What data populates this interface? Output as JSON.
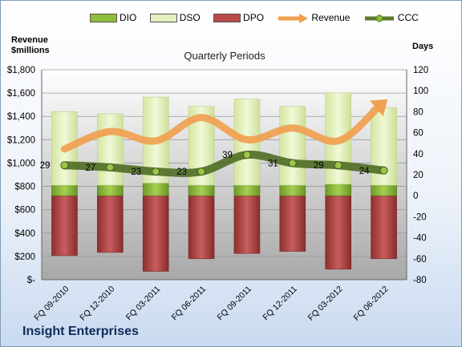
{
  "company": "Insight Enterprises",
  "left_axis_title": "Revenue\n$millions",
  "right_axis_title": "Days",
  "chart_data": {
    "type": "bar",
    "title": "Quarterly Periods",
    "categories": [
      "FQ 09-2010",
      "FQ 12-2010",
      "FQ 03-2011",
      "FQ 06-2011",
      "FQ 09-2011",
      "FQ 12-2011",
      "FQ 03-2012",
      "FQ 06-2012"
    ],
    "left_axis": {
      "title": "Revenue $millions",
      "min": 0,
      "max": 1800,
      "step": 200,
      "tick_labels": [
        "$-",
        "$200",
        "$400",
        "$600",
        "$800",
        "$1,000",
        "$1,200",
        "$1,400",
        "$1,600",
        "$1,800"
      ]
    },
    "right_axis": {
      "title": "Days",
      "min": -80,
      "max": 120,
      "step": 20
    },
    "series": [
      {
        "name": "DIO",
        "kind": "stacked_bar_positive",
        "color": "#8fbc3a",
        "values": [
          10,
          10,
          12,
          10,
          10,
          10,
          11,
          10
        ]
      },
      {
        "name": "DSO",
        "kind": "stacked_bar_positive",
        "color": "#e3efbf",
        "values": [
          70,
          68,
          82,
          75,
          82,
          75,
          87,
          74
        ]
      },
      {
        "name": "DPO",
        "kind": "bar_negative",
        "color": "#b84a4a",
        "values": [
          -57,
          -54,
          -72,
          -60,
          -55,
          -53,
          -70,
          -60
        ]
      },
      {
        "name": "Revenue",
        "kind": "line_left_axis",
        "color": "#f0a050",
        "values": [
          1120,
          1270,
          1190,
          1390,
          1200,
          1300,
          1190,
          1520
        ]
      },
      {
        "name": "CCC",
        "kind": "line_right_axis",
        "color": "#5f7a2e",
        "values": [
          29,
          27,
          23,
          23,
          39,
          31,
          29,
          24
        ]
      }
    ],
    "ccc_labels": [
      "29",
      "27",
      "23",
      "23",
      "39",
      "31",
      "29",
      "24"
    ],
    "legend_position": "top",
    "grid": true
  },
  "colors": {
    "plot_bg_top": "#ffffff",
    "plot_bg_bottom": "#aaaaaa",
    "dpo_dark": "#8a2a2a",
    "dio_dark": "#4e7a1a",
    "company": "#0f2a5a"
  }
}
